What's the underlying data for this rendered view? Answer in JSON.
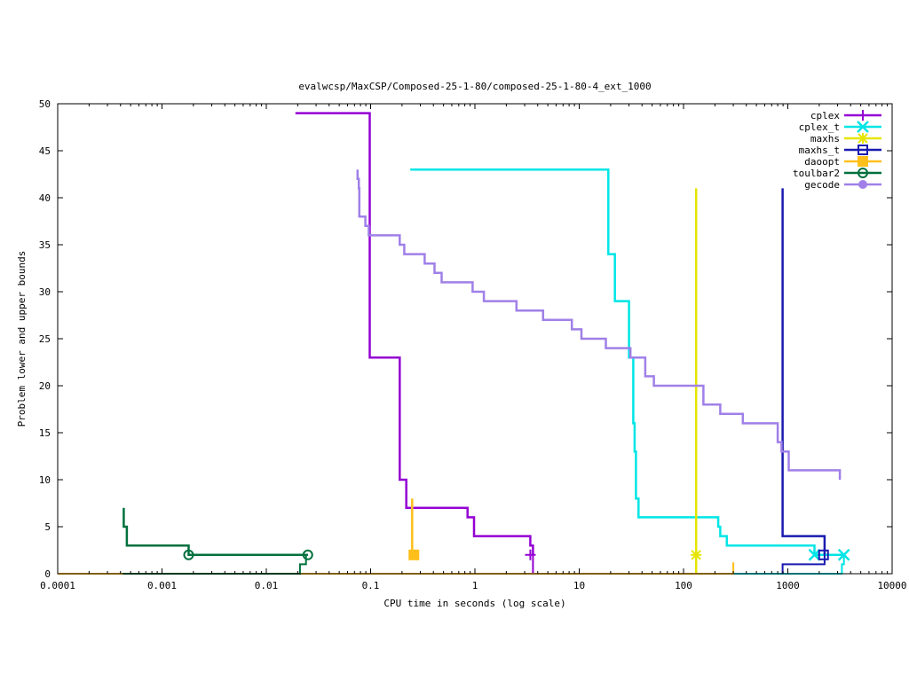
{
  "chart_data": {
    "type": "line",
    "title": "evalwcsp/MaxCSP/Composed-25-1-80/composed-25-1-80-4_ext_1000",
    "xlabel": "CPU time in seconds (log scale)",
    "ylabel": "Problem lower and upper bounds",
    "xscale": "log",
    "xlim": [
      0.0001,
      10000
    ],
    "ylim": [
      0,
      50
    ],
    "xticks": [
      {
        "value": 0.0001,
        "label": "0.0001"
      },
      {
        "value": 0.001,
        "label": "0.001"
      },
      {
        "value": 0.01,
        "label": "0.01"
      },
      {
        "value": 0.1,
        "label": "0.1"
      },
      {
        "value": 1,
        "label": "1"
      },
      {
        "value": 10,
        "label": "10"
      },
      {
        "value": 100,
        "label": "100"
      },
      {
        "value": 1000,
        "label": "1000"
      },
      {
        "value": 10000,
        "label": "10000"
      }
    ],
    "yticks": [
      {
        "value": 0,
        "label": "0"
      },
      {
        "value": 5,
        "label": "5"
      },
      {
        "value": 10,
        "label": "10"
      },
      {
        "value": 15,
        "label": "15"
      },
      {
        "value": 20,
        "label": "20"
      },
      {
        "value": 25,
        "label": "25"
      },
      {
        "value": 30,
        "label": "30"
      },
      {
        "value": 35,
        "label": "35"
      },
      {
        "value": 40,
        "label": "40"
      },
      {
        "value": 45,
        "label": "45"
      },
      {
        "value": 50,
        "label": "50"
      }
    ],
    "legend_position": "top-right",
    "series": [
      {
        "name": "cplex",
        "color": "#9400d3",
        "marker": "plus",
        "upper": [
          [
            0.019,
            49
          ],
          [
            0.098,
            49
          ],
          [
            0.098,
            23
          ],
          [
            0.19,
            23
          ],
          [
            0.19,
            10
          ],
          [
            0.22,
            10
          ],
          [
            0.22,
            7
          ],
          [
            0.85,
            7
          ],
          [
            0.85,
            6
          ],
          [
            0.98,
            6
          ],
          [
            0.98,
            4
          ],
          [
            3.4,
            4
          ],
          [
            3.4,
            3
          ],
          [
            3.6,
            3
          ],
          [
            3.6,
            2
          ]
        ],
        "lower": [
          [
            0.0001,
            0
          ],
          [
            3.6,
            0
          ],
          [
            3.6,
            2
          ]
        ],
        "markers": [
          [
            3.4,
            2
          ]
        ]
      },
      {
        "name": "cplex_t",
        "color": "#00e5e5",
        "marker": "cross",
        "upper": [
          [
            0.24,
            43
          ],
          [
            19,
            43
          ],
          [
            19,
            34
          ],
          [
            22,
            34
          ],
          [
            22,
            29
          ],
          [
            30,
            29
          ],
          [
            30,
            23
          ],
          [
            33,
            23
          ],
          [
            33,
            16
          ],
          [
            34,
            16
          ],
          [
            34,
            13
          ],
          [
            35,
            13
          ],
          [
            35,
            8
          ],
          [
            37,
            8
          ],
          [
            37,
            6
          ],
          [
            215,
            6
          ],
          [
            215,
            5
          ],
          [
            225,
            5
          ],
          [
            225,
            4
          ],
          [
            260,
            4
          ],
          [
            260,
            3
          ],
          [
            1800,
            3
          ],
          [
            1800,
            2
          ],
          [
            3500,
            2
          ]
        ],
        "lower": [
          [
            300,
            0
          ],
          [
            3300,
            0
          ],
          [
            3300,
            1
          ],
          [
            3450,
            1
          ],
          [
            3450,
            2
          ]
        ],
        "markers": [
          [
            1800,
            2
          ],
          [
            3450,
            2
          ]
        ]
      },
      {
        "name": "maxhs",
        "color": "#e5e500",
        "marker": "star",
        "upper": [
          [
            132,
            41
          ],
          [
            132,
            0
          ]
        ],
        "lower": [
          [
            132,
            0
          ]
        ],
        "markers": [
          [
            132,
            2
          ]
        ]
      },
      {
        "name": "maxhs_t",
        "color": "#1a1ab0",
        "marker": "square",
        "upper": [
          [
            890,
            41
          ],
          [
            890,
            4
          ],
          [
            2250,
            4
          ],
          [
            2250,
            2
          ]
        ],
        "lower": [
          [
            890,
            0
          ],
          [
            890,
            1
          ],
          [
            2250,
            1
          ],
          [
            2250,
            2
          ]
        ],
        "markers": [
          [
            2200,
            2
          ]
        ]
      },
      {
        "name": "daoopt",
        "color": "#ffbf1a",
        "marker": "filled-square",
        "upper": [
          [
            0.25,
            8
          ],
          [
            0.25,
            2
          ]
        ],
        "lower": [
          [
            0.0001,
            0
          ],
          [
            300,
            0
          ],
          [
            300,
            1.2
          ]
        ],
        "markers": [
          [
            0.26,
            2
          ]
        ]
      },
      {
        "name": "toulbar2",
        "color": "#00703c",
        "marker": "circle",
        "upper": [
          [
            0.00043,
            7
          ],
          [
            0.00043,
            5
          ],
          [
            0.00046,
            5
          ],
          [
            0.00046,
            3
          ],
          [
            0.0018,
            3
          ],
          [
            0.0018,
            2
          ],
          [
            0.025,
            2
          ]
        ],
        "lower": [
          [
            0.00042,
            0
          ],
          [
            0.021,
            0
          ],
          [
            0.021,
            1
          ],
          [
            0.024,
            1
          ],
          [
            0.024,
            2
          ],
          [
            0.025,
            2
          ]
        ],
        "markers": [
          [
            0.0018,
            2
          ],
          [
            0.025,
            2
          ]
        ]
      },
      {
        "name": "gecode",
        "color": "#a080e8",
        "marker": "filled-circle",
        "upper": [
          [
            0.075,
            43
          ],
          [
            0.075,
            42
          ],
          [
            0.077,
            42
          ],
          [
            0.077,
            41
          ],
          [
            0.078,
            41
          ],
          [
            0.078,
            38
          ],
          [
            0.089,
            38
          ],
          [
            0.089,
            37
          ],
          [
            0.096,
            37
          ],
          [
            0.096,
            36
          ],
          [
            0.19,
            36
          ],
          [
            0.19,
            35
          ],
          [
            0.21,
            35
          ],
          [
            0.21,
            34
          ],
          [
            0.33,
            34
          ],
          [
            0.33,
            33
          ],
          [
            0.41,
            33
          ],
          [
            0.41,
            32
          ],
          [
            0.48,
            32
          ],
          [
            0.48,
            31
          ],
          [
            0.95,
            31
          ],
          [
            0.95,
            30
          ],
          [
            1.22,
            30
          ],
          [
            1.22,
            29
          ],
          [
            2.5,
            29
          ],
          [
            2.5,
            28
          ],
          [
            4.5,
            28
          ],
          [
            4.5,
            27
          ],
          [
            8.5,
            27
          ],
          [
            8.5,
            26
          ],
          [
            10.5,
            26
          ],
          [
            10.5,
            25
          ],
          [
            18,
            25
          ],
          [
            18,
            24
          ],
          [
            31,
            24
          ],
          [
            31,
            23
          ],
          [
            43,
            23
          ],
          [
            43,
            21
          ],
          [
            52,
            21
          ],
          [
            52,
            20
          ],
          [
            155,
            20
          ],
          [
            155,
            18
          ],
          [
            225,
            18
          ],
          [
            225,
            17
          ],
          [
            370,
            17
          ],
          [
            370,
            16
          ],
          [
            800,
            16
          ],
          [
            800,
            14
          ],
          [
            870,
            14
          ],
          [
            870,
            13
          ],
          [
            1020,
            13
          ],
          [
            1020,
            11
          ],
          [
            1800,
            11
          ],
          [
            3150,
            11
          ],
          [
            3150,
            10
          ]
        ],
        "lower": [],
        "markers": []
      }
    ]
  }
}
